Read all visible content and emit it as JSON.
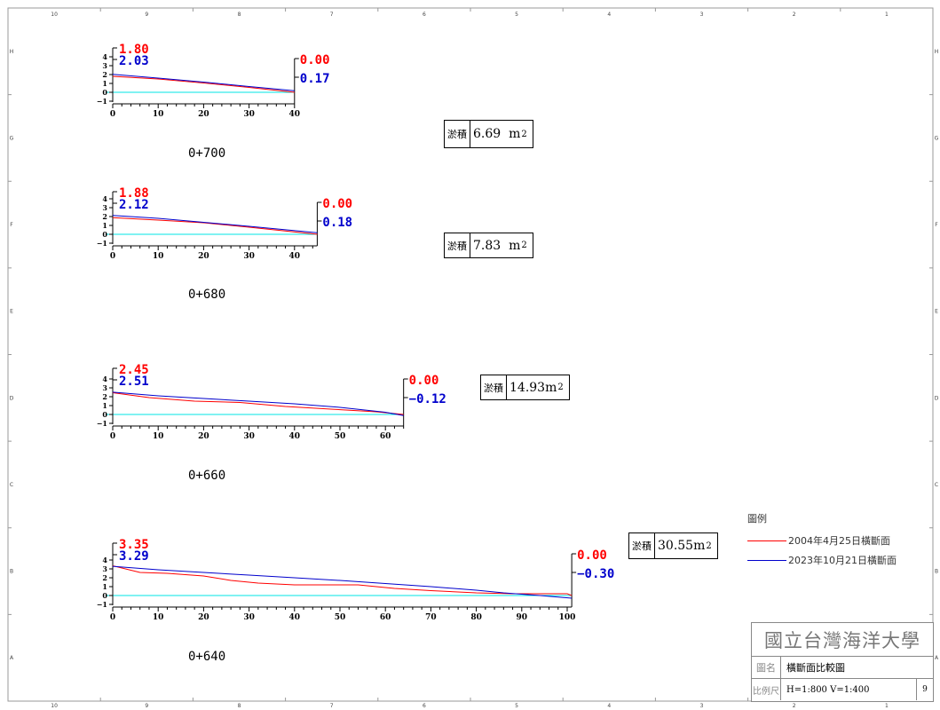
{
  "border": {
    "columns": [
      "10",
      "9",
      "8",
      "7",
      "6",
      "5",
      "4",
      "3",
      "2",
      "1"
    ],
    "rows": [
      "H",
      "G",
      "F",
      "E",
      "D",
      "C",
      "B",
      "A"
    ]
  },
  "legend": {
    "title": "圖例",
    "items": [
      {
        "label": "2004年4月25日橫斷面",
        "color": "#ff0000"
      },
      {
        "label": "2023年10月21日橫斷面",
        "color": "#0000cc"
      }
    ]
  },
  "title_block": {
    "school": "國立台灣海洋大學",
    "name_key": "圖名",
    "name_value": "橫斷面比較圖",
    "scale_key": "比例尺",
    "scale_value": "H=1:800 V=1:400",
    "sheet": "9"
  },
  "chart_data": [
    {
      "type": "line",
      "station": "0+700",
      "deposit_label": "淤積",
      "deposit_value": "6.69",
      "deposit_unit": "m",
      "deposit_power": "2",
      "left_top_red": "1.80",
      "left_top_blue": "2.03",
      "right_red": "0.00",
      "right_blue": "0.17",
      "xticks": [
        0,
        10,
        20,
        30,
        40
      ],
      "xlim": [
        0,
        40
      ],
      "ylim": [
        -1,
        4
      ],
      "yticks": [
        "4",
        "3",
        "2",
        "1",
        "0",
        "−1"
      ],
      "series": [
        {
          "name": "2004年4月25日橫斷面",
          "color": "#ff0000",
          "x": [
            0,
            10,
            20,
            30,
            40
          ],
          "y": [
            1.8,
            1.5,
            1.05,
            0.55,
            0.0
          ]
        },
        {
          "name": "2023年10月21日橫斷面",
          "color": "#0000cc",
          "x": [
            0,
            10,
            20,
            30,
            40
          ],
          "y": [
            2.03,
            1.6,
            1.15,
            0.65,
            0.17
          ]
        }
      ]
    },
    {
      "type": "line",
      "station": "0+680",
      "deposit_label": "淤積",
      "deposit_value": "7.83",
      "deposit_unit": "m",
      "deposit_power": "2",
      "left_top_red": "1.88",
      "left_top_blue": "2.12",
      "right_red": "0.00",
      "right_blue": "0.18",
      "xticks": [
        0,
        10,
        20,
        30,
        40
      ],
      "xlim": [
        0,
        45
      ],
      "ylim": [
        -1,
        4
      ],
      "yticks": [
        "4",
        "3",
        "2",
        "1",
        "0",
        "−1"
      ],
      "series": [
        {
          "name": "2004年4月25日橫斷面",
          "color": "#ff0000",
          "x": [
            0,
            10,
            20,
            30,
            45
          ],
          "y": [
            1.88,
            1.6,
            1.3,
            0.8,
            0.0
          ]
        },
        {
          "name": "2023年10月21日橫斷面",
          "color": "#0000cc",
          "x": [
            0,
            10,
            20,
            30,
            45
          ],
          "y": [
            2.12,
            1.8,
            1.35,
            0.9,
            0.18
          ]
        }
      ]
    },
    {
      "type": "line",
      "station": "0+660",
      "deposit_label": "淤積",
      "deposit_value": "14.93",
      "deposit_unit": "m",
      "deposit_power": "2",
      "left_top_red": "2.45",
      "left_top_blue": "2.51",
      "right_red": "0.00",
      "right_blue": "−0.12",
      "xticks": [
        0,
        10,
        20,
        30,
        40,
        50,
        60
      ],
      "xlim": [
        0,
        64
      ],
      "ylim": [
        -1,
        4
      ],
      "yticks": [
        "4",
        "3",
        "2",
        "1",
        "0",
        "−1"
      ],
      "series": [
        {
          "name": "2004年4月25日橫斷面",
          "color": "#ff0000",
          "x": [
            0,
            8,
            18,
            28,
            38,
            48,
            58,
            64
          ],
          "y": [
            2.45,
            1.9,
            1.5,
            1.35,
            0.9,
            0.6,
            0.3,
            0.0
          ]
        },
        {
          "name": "2023年10月21日橫斷面",
          "color": "#0000cc",
          "x": [
            0,
            10,
            20,
            30,
            40,
            50,
            60,
            64
          ],
          "y": [
            2.51,
            2.1,
            1.8,
            1.5,
            1.2,
            0.8,
            0.25,
            -0.12
          ]
        }
      ]
    },
    {
      "type": "line",
      "station": "0+640",
      "deposit_label": "淤積",
      "deposit_value": "30.55",
      "deposit_unit": "m",
      "deposit_power": "2",
      "left_top_red": "3.35",
      "left_top_blue": "3.29",
      "right_red": "0.00",
      "right_blue": "−0.30",
      "xticks": [
        0,
        10,
        20,
        30,
        40,
        50,
        60,
        70,
        80,
        90,
        100
      ],
      "xlim": [
        0,
        101
      ],
      "ylim": [
        -1,
        4
      ],
      "yticks": [
        "4",
        "3",
        "2",
        "1",
        "0",
        "−1"
      ],
      "series": [
        {
          "name": "2004年4月25日橫斷面",
          "color": "#ff0000",
          "x": [
            0,
            6,
            12,
            20,
            26,
            32,
            40,
            46,
            54,
            62,
            70,
            80,
            88,
            94,
            100,
            101
          ],
          "y": [
            3.35,
            2.6,
            2.5,
            2.2,
            1.7,
            1.4,
            1.2,
            1.2,
            1.2,
            0.8,
            0.55,
            0.3,
            0.2,
            0.2,
            0.2,
            0.0
          ]
        },
        {
          "name": "2023年10月21日橫斷面",
          "color": "#0000cc",
          "x": [
            0,
            10,
            20,
            30,
            40,
            50,
            60,
            70,
            80,
            86,
            94,
            101
          ],
          "y": [
            3.29,
            2.9,
            2.6,
            2.3,
            2.0,
            1.7,
            1.35,
            1.0,
            0.6,
            0.3,
            0.0,
            -0.3
          ]
        }
      ]
    }
  ]
}
